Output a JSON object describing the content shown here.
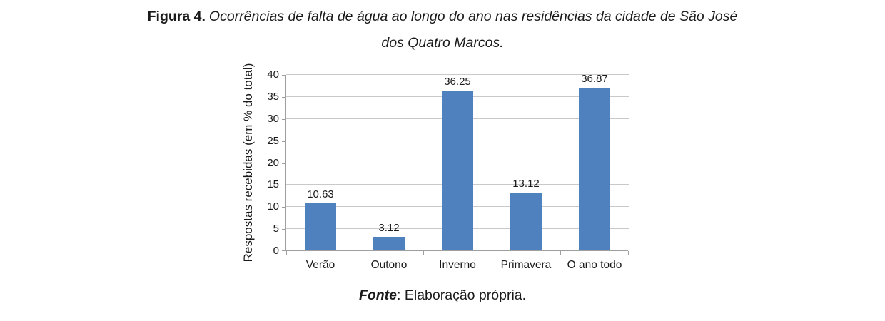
{
  "figure": {
    "title_prefix": "Figura 4.",
    "title_line1": "Ocorrências de falta de água ao longo do ano nas residências da cidade de São José",
    "title_line2": "dos Quatro Marcos.",
    "source_label": "Fonte",
    "source_text": ": Elaboração própria."
  },
  "chart_data": {
    "type": "bar",
    "title": "",
    "categories": [
      "Verão",
      "Outono",
      "Inverno",
      "Primavera",
      "O ano todo"
    ],
    "values": [
      10.63,
      3.12,
      36.25,
      13.12,
      36.87
    ],
    "value_labels": [
      "10.63",
      "3.12",
      "36.25",
      "13.12",
      "36.87"
    ],
    "xlabel": "",
    "ylabel": "Respostas recebidas (em % do total)",
    "ylim": [
      0,
      40
    ],
    "ytick_step": 5,
    "grid": true,
    "legend": false,
    "bar_color": "#4e81bd",
    "gridline_color": "#c9c9c9",
    "axis_color": "#9e9e9e",
    "text_color": "#1a1a1a"
  }
}
